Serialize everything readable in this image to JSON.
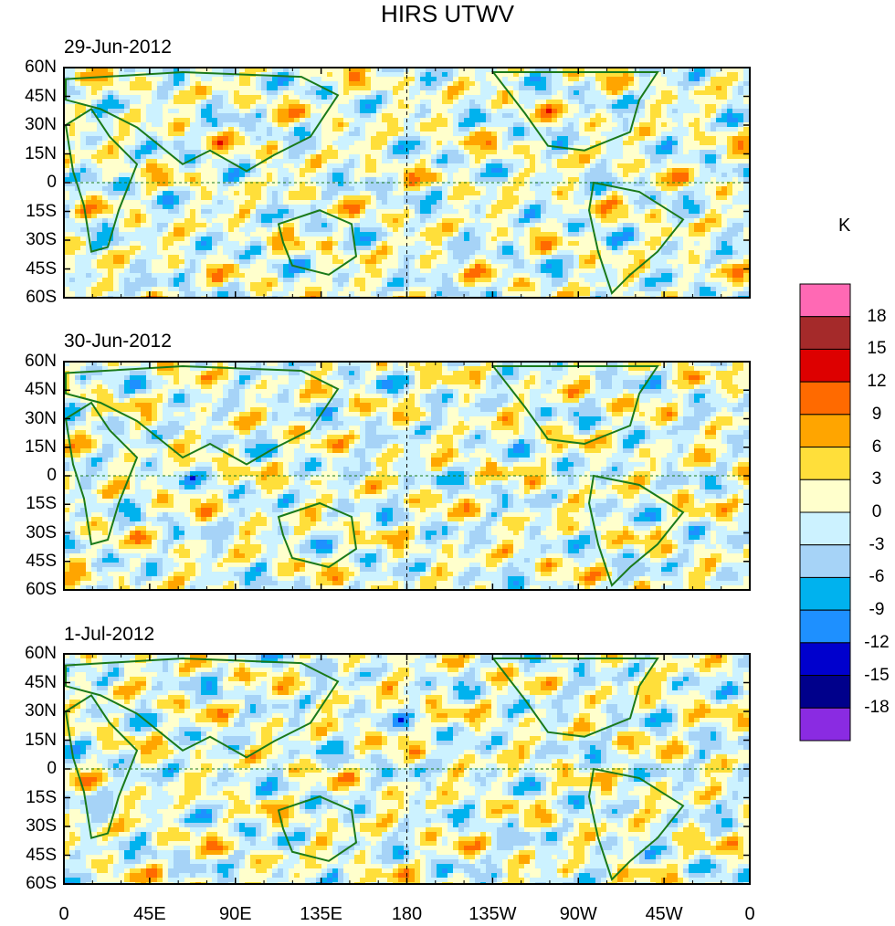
{
  "chart_data": {
    "type": "heatmap",
    "title": "HIRS UTWV",
    "units": "K",
    "panels": [
      {
        "date": "29-Jun-2012",
        "seed": 3
      },
      {
        "date": "30-Jun-2012",
        "seed": 11
      },
      {
        "date": "1-Jul-2012",
        "seed": 23
      }
    ],
    "lon_ticks": [
      "0",
      "45E",
      "90E",
      "135E",
      "180",
      "135W",
      "90W",
      "45W",
      "0"
    ],
    "lat_ticks": [
      "60N",
      "45N",
      "30N",
      "15N",
      "0",
      "15S",
      "30S",
      "45S",
      "60S"
    ],
    "lon_range": [
      0,
      360
    ],
    "lat_range": [
      -60,
      60
    ],
    "colorbar": {
      "levels": [
        "18",
        "15",
        "12",
        "9",
        "6",
        "3",
        "0",
        "-3",
        "-6",
        "-9",
        "-12",
        "-15",
        "-18"
      ],
      "colors": [
        "#ff69b4",
        "#a52a2a",
        "#dd0000",
        "#ff6a00",
        "#ffa500",
        "#ffdf3a",
        "#ffffcc",
        "#ccf2ff",
        "#a6d3f7",
        "#00b2ee",
        "#1e90ff",
        "#0000cd",
        "#00008b",
        "#8a2be2"
      ]
    }
  }
}
